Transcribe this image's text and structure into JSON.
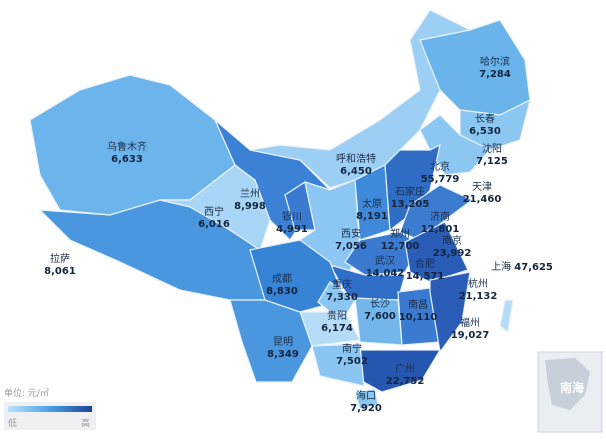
{
  "legend": {
    "unit": "单位: 元/㎡",
    "low": "低",
    "high": "高",
    "color_low": "#b9e2fa",
    "color_high": "#1f3f95"
  },
  "inset": {
    "label": "南海"
  },
  "cities": [
    {
      "name": "乌鲁木齐",
      "value": "6,633"
    },
    {
      "name": "哈尔滨",
      "value": "7,284"
    },
    {
      "name": "长春",
      "value": "6,530"
    },
    {
      "name": "沈阳",
      "value": "7,125"
    },
    {
      "name": "呼和浩特",
      "value": "6,450"
    },
    {
      "name": "北京",
      "value": "55,779"
    },
    {
      "name": "天津",
      "value": "21,460"
    },
    {
      "name": "石家庄",
      "value": "13,205"
    },
    {
      "name": "太原",
      "value": "8,191"
    },
    {
      "name": "济南",
      "value": "12,801"
    },
    {
      "name": "兰州",
      "value": "8,998"
    },
    {
      "name": "银川",
      "value": "4,991"
    },
    {
      "name": "西宁",
      "value": "6,016"
    },
    {
      "name": "西安",
      "value": "7,056"
    },
    {
      "name": "郑州",
      "value": "12,700"
    },
    {
      "name": "南京",
      "value": "23,992"
    },
    {
      "name": "合肥",
      "value": "14,571"
    },
    {
      "name": "上海",
      "value": "47,625"
    },
    {
      "name": "拉萨",
      "value": "8,061"
    },
    {
      "name": "成都",
      "value": "8,830"
    },
    {
      "name": "武汉",
      "value": "14,042"
    },
    {
      "name": "重庆",
      "value": "7,330"
    },
    {
      "name": "杭州",
      "value": "21,132"
    },
    {
      "name": "长沙",
      "value": "7,600"
    },
    {
      "name": "南昌",
      "value": "10,110"
    },
    {
      "name": "贵阳",
      "value": "6,174"
    },
    {
      "name": "福州",
      "value": "19,027"
    },
    {
      "name": "昆明",
      "value": "8,349"
    },
    {
      "name": "南宁",
      "value": "7,502"
    },
    {
      "name": "广州",
      "value": "22,752"
    },
    {
      "name": "海口",
      "value": "7,920"
    }
  ]
}
